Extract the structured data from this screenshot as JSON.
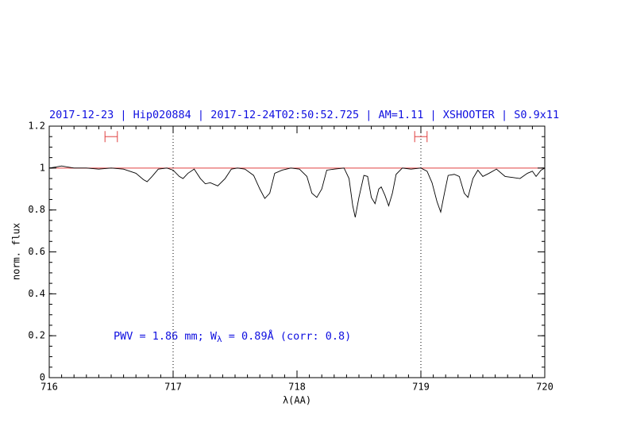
{
  "chart_data": {
    "type": "line",
    "title": "2017-12-23 | Hip020884 | 2017-12-24T02:50:52.725 | AM=1.11 | XSHOOTER | S0.9x11",
    "xlabel": "λ(AA)",
    "ylabel": "norm. flux",
    "annotation": [
      "PWV = 1.86 mm; W",
      "λ",
      " = 0.89Å (corr: 0.8)"
    ],
    "color": "#000000",
    "xlim": [
      716,
      720
    ],
    "ylim": [
      0,
      1.2
    ],
    "xticks": [
      716,
      717,
      718,
      719,
      720
    ],
    "yticks": [
      0,
      0.2,
      0.4,
      0.6,
      0.8,
      1,
      1.2
    ],
    "xminor_step": 0.1,
    "yminor_step": 0.05,
    "hline": 1,
    "hline_color": "#e04040",
    "vlines": [
      717,
      719
    ],
    "intervals": [
      {
        "x": [
          716.45,
          716.55
        ],
        "y": 1.15
      },
      {
        "x": [
          718.95,
          719.05
        ],
        "y": 1.15
      }
    ],
    "interval_color": "#e04040",
    "x": [
      716.0,
      716.05,
      716.1,
      716.15,
      716.2,
      716.3,
      716.4,
      716.5,
      716.6,
      716.7,
      716.76,
      716.79,
      716.83,
      716.88,
      716.95,
      717.0,
      717.05,
      717.08,
      717.12,
      717.17,
      717.22,
      717.26,
      717.3,
      717.36,
      717.42,
      717.47,
      717.52,
      717.58,
      717.65,
      717.7,
      717.74,
      717.78,
      717.82,
      717.88,
      717.95,
      718.02,
      718.08,
      718.12,
      718.16,
      718.2,
      718.24,
      718.3,
      718.38,
      718.42,
      718.45,
      718.47,
      718.5,
      718.54,
      718.57,
      718.6,
      718.63,
      718.66,
      718.68,
      718.71,
      718.74,
      718.77,
      718.8,
      718.85,
      718.92,
      719.0,
      719.05,
      719.09,
      719.13,
      719.16,
      719.19,
      719.22,
      719.27,
      719.31,
      719.35,
      719.38,
      719.42,
      719.46,
      719.5,
      719.55,
      719.61,
      719.68,
      719.74,
      719.8,
      719.86,
      719.9,
      719.93,
      719.97,
      720.0
    ],
    "values": [
      1.0,
      1.005,
      1.01,
      1.005,
      1.0,
      1.0,
      0.995,
      1.0,
      0.995,
      0.975,
      0.945,
      0.935,
      0.96,
      0.995,
      1.0,
      0.99,
      0.96,
      0.95,
      0.975,
      0.995,
      0.95,
      0.925,
      0.93,
      0.915,
      0.95,
      0.995,
      1.0,
      0.995,
      0.965,
      0.9,
      0.855,
      0.88,
      0.975,
      0.99,
      1.0,
      0.995,
      0.96,
      0.88,
      0.86,
      0.9,
      0.99,
      0.995,
      1.0,
      0.95,
      0.82,
      0.765,
      0.86,
      0.965,
      0.96,
      0.86,
      0.83,
      0.9,
      0.91,
      0.87,
      0.82,
      0.88,
      0.97,
      1.0,
      0.995,
      1.0,
      0.985,
      0.93,
      0.84,
      0.79,
      0.88,
      0.965,
      0.97,
      0.96,
      0.88,
      0.86,
      0.95,
      0.99,
      0.96,
      0.975,
      0.995,
      0.96,
      0.955,
      0.95,
      0.975,
      0.985,
      0.96,
      0.99,
      1.0
    ]
  }
}
